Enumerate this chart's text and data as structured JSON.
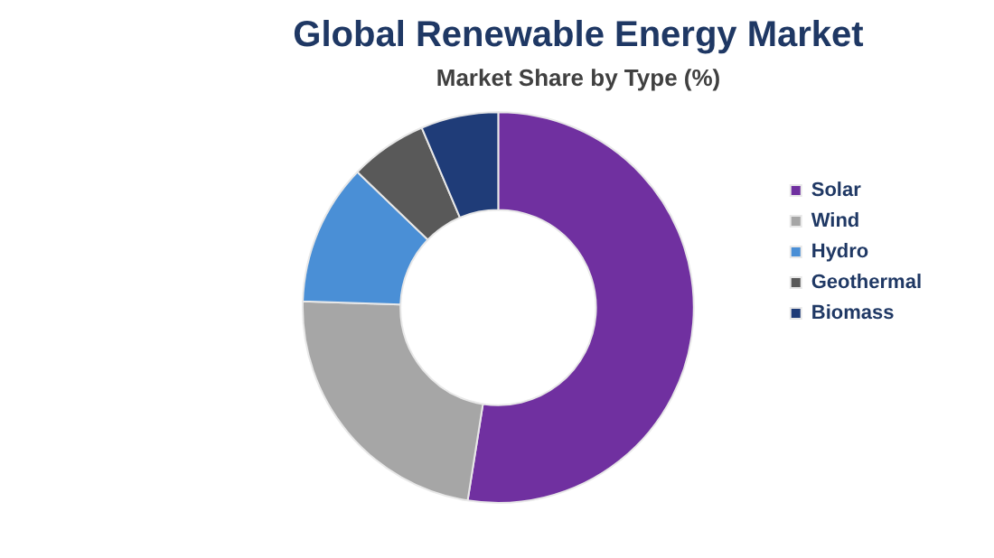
{
  "chart_data": {
    "type": "donut",
    "title": "Global Renewable Energy Market",
    "subtitle": "Market Share by Type (%)",
    "categories": [
      "Solar",
      "Wind",
      "Hydro",
      "Geothermal",
      "Biomass"
    ],
    "values": [
      52.5,
      23,
      11.7,
      6.4,
      6.4
    ],
    "colors": [
      "#7030a0",
      "#a6a6a6",
      "#4a8fd6",
      "#595959",
      "#1f3c78"
    ],
    "legend": "right"
  }
}
